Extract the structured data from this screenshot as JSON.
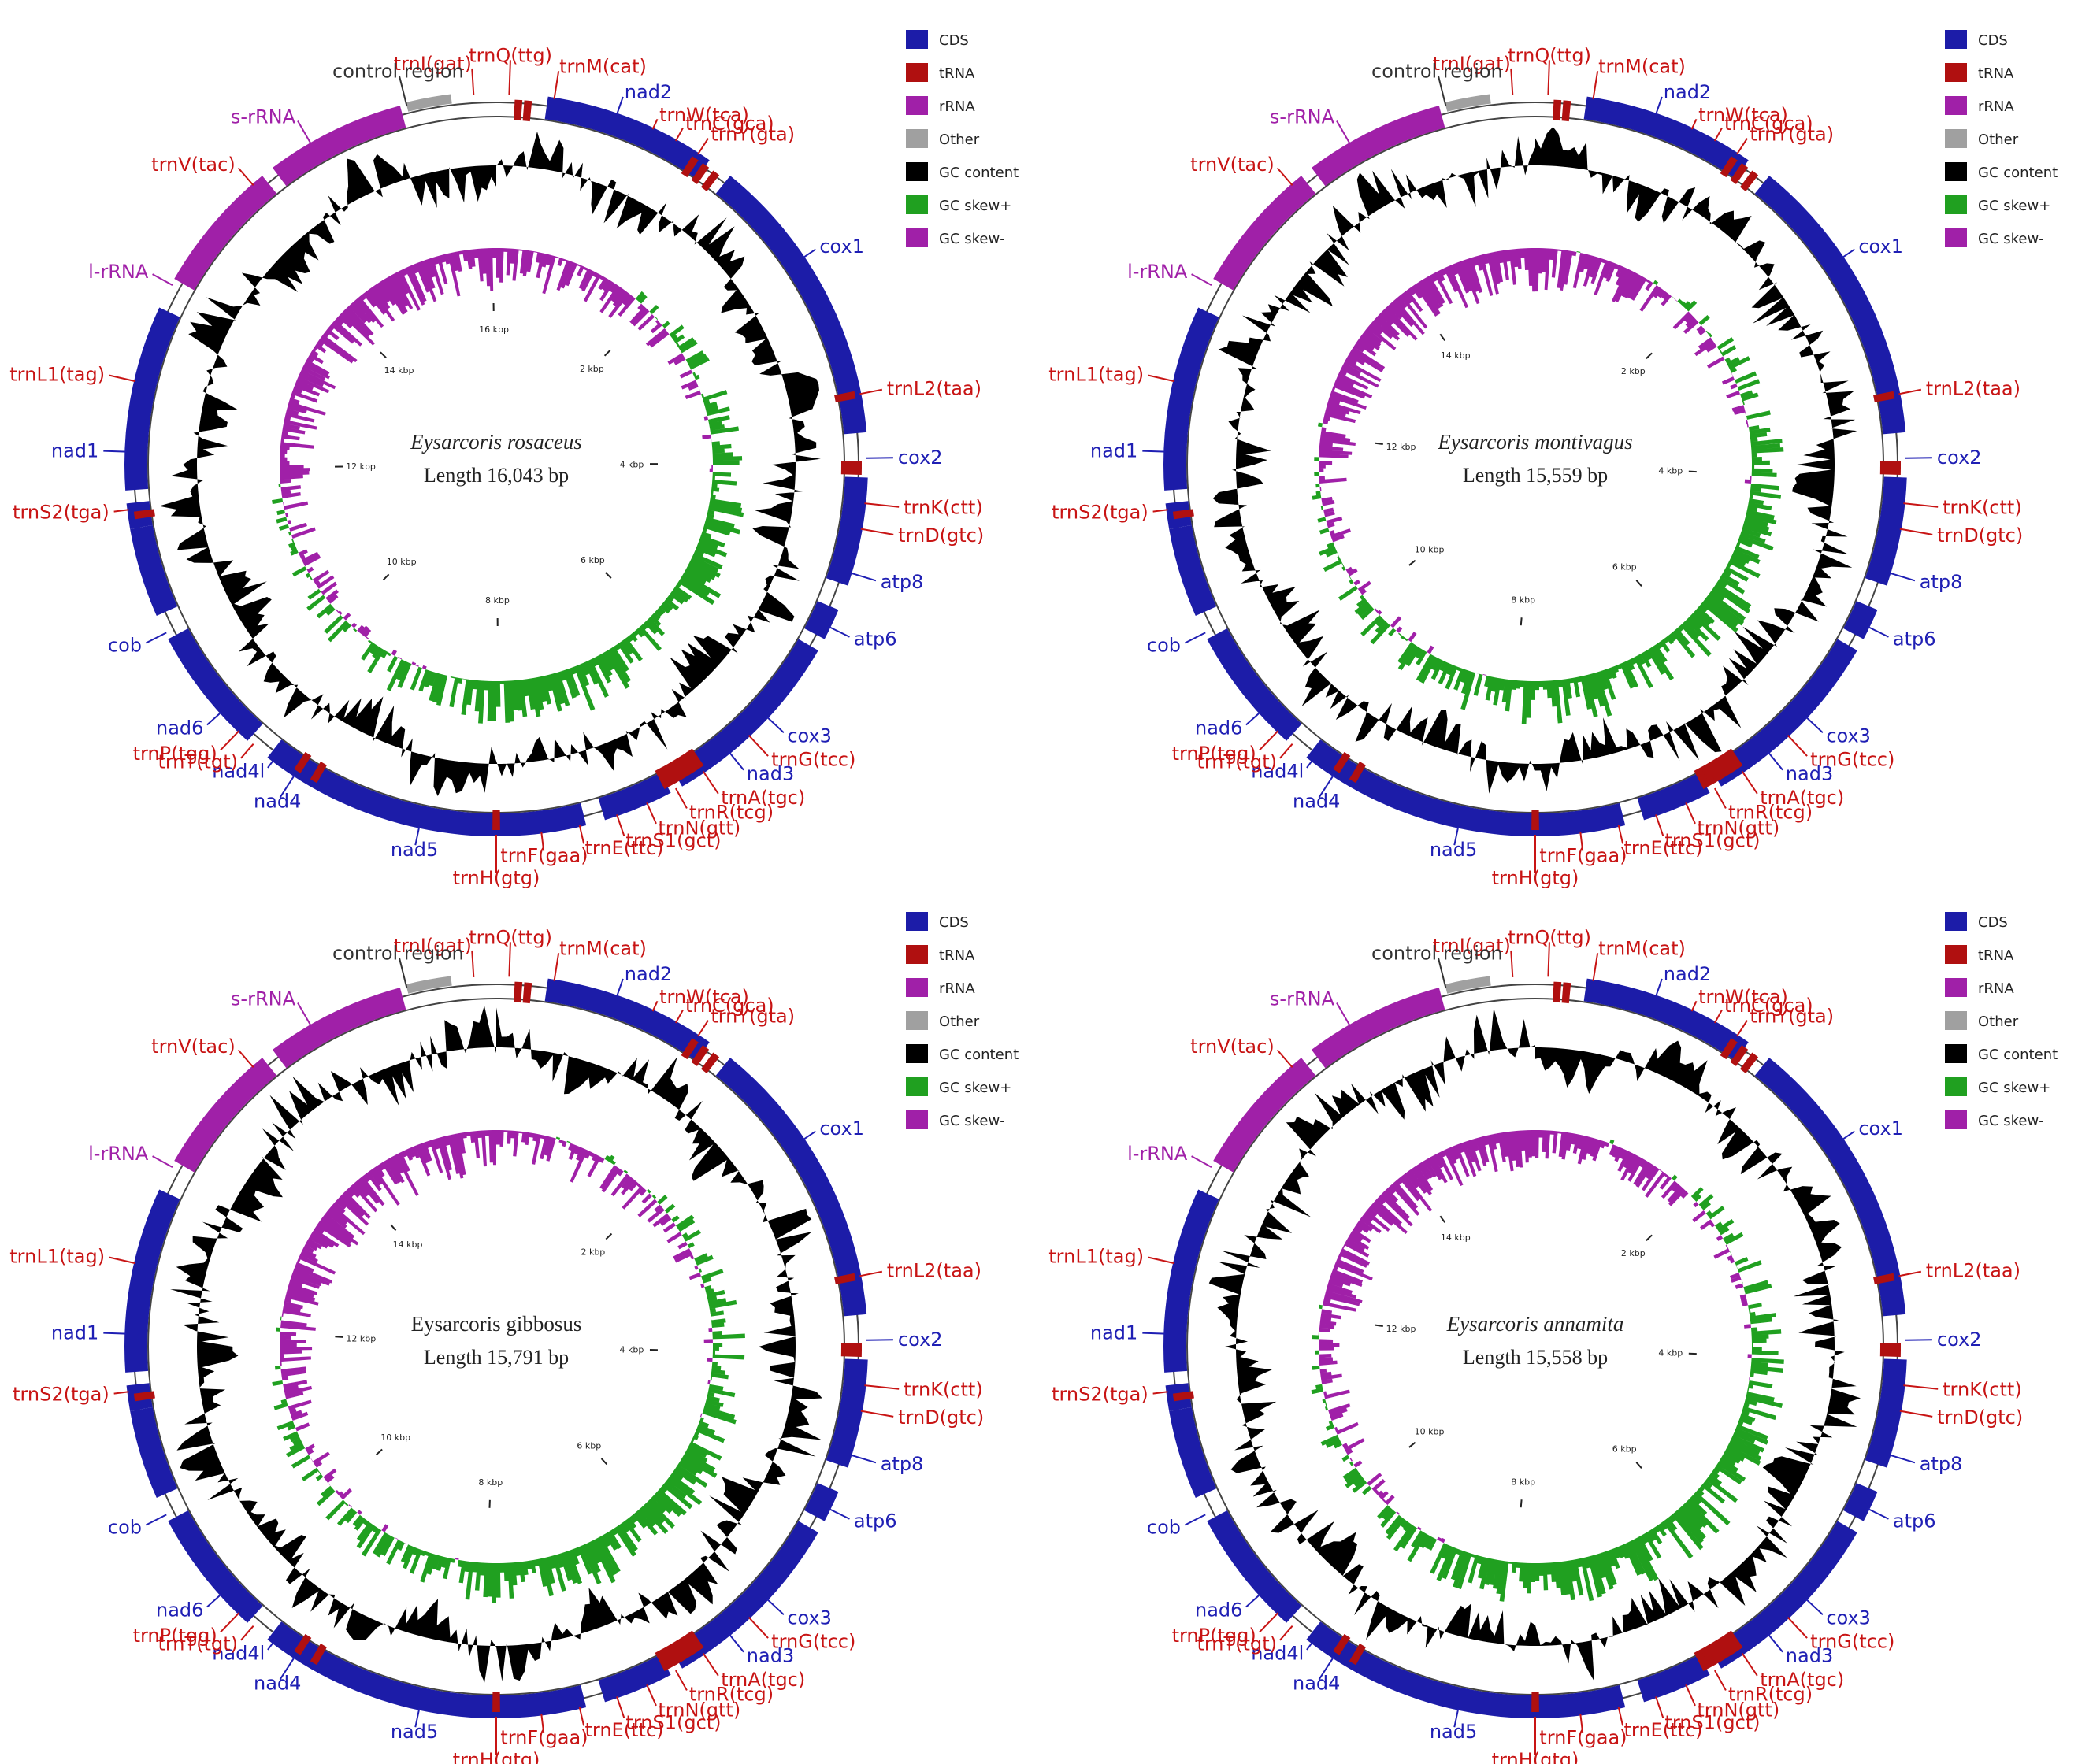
{
  "panels": [
    {
      "id": "rosaceus",
      "species": "Eysarcoris rosaceus",
      "italic": true,
      "length_label": "Length 16,043 bp",
      "length_bp": 16043,
      "kbp_ticks": [
        "2 kbp",
        "4 kbp",
        "6 kbp",
        "8 kbp",
        "10 kbp",
        "12 kbp",
        "14 kbp",
        "16 kbp"
      ],
      "labels": {
        "control": "control region",
        "trnI": "trnI(gat)",
        "trnQ": "trnQ(ttg)",
        "trnM": "trnM(cat)",
        "nad2": "nad2",
        "trnW": "trnW(tca)",
        "trnC": "trnC(gca)",
        "trnY": "trnY(gta)",
        "cox1": "cox1",
        "trnL2": "trnL2(taa)",
        "cox2": "cox2",
        "trnK": "trnK(ctt)",
        "trnD": "trnD(gtc)",
        "atp8": "atp8",
        "atp6": "atp6",
        "cox3": "cox3",
        "trnG": "trnG(tcc)",
        "nad3": "nad3",
        "trnA": "trnA(tgc)",
        "trnR": "trnR(tcg)",
        "trnN": "trnN(gtt)",
        "trnS1": "trnS1(gct)",
        "trnE": "trnE(ttc)",
        "trnF": "trnF(gaa)",
        "nad5": "nad5",
        "trnH": "trnH(gtg)",
        "nad4": "nad4",
        "nad4l": "nad4l",
        "trnT": "trnT(tgt)",
        "trnP": "trnP(tgg)",
        "nad6": "nad6",
        "cob": "cob",
        "trnS2": "trnS2(tga)",
        "nad1": "nad1",
        "trnL1": "trnL1(tag)",
        "lrRNA": "l-rRNA",
        "trnV": "trnV(tac)",
        "srRNA": "s-rRNA"
      }
    },
    {
      "id": "montivagus",
      "species": "Eysarcoris montivagus",
      "italic": true,
      "length_label": "Length 15,559 bp",
      "length_bp": 15559,
      "kbp_ticks": [
        "2 kbp",
        "4 kbp",
        "6 kbp",
        "8 kbp",
        "10 kbp",
        "12 kbp",
        "14 kbp"
      ],
      "labels": {
        "control": "control region",
        "trnI": "trnI(gat)",
        "trnQ": "trnQ(ttg)",
        "trnM": "trnM(cat)",
        "nad2": "nad2",
        "trnW": "trnW(tca)",
        "trnC": "trnC(gca)",
        "trnY": "trnY(gta)",
        "cox1": "cox1",
        "trnL2": "trnL2(taa)",
        "cox2": "cox2",
        "trnK": "trnK(ctt)",
        "trnD": "trnD(gtc)",
        "atp8": "atp8",
        "atp6": "atp6",
        "cox3": "cox3",
        "trnG": "trnG(tcc)",
        "nad3": "nad3",
        "trnA": "trnA(tgc)",
        "trnR": "trnR(tcg)",
        "trnN": "trnN(gtt)",
        "trnS1": "trnS1(gct)",
        "trnE": "trnE(ttc)",
        "trnF": "trnF(gaa)",
        "nad5": "nad5",
        "trnH": "trnH(gtg)",
        "nad4": "nad4",
        "nad4l": "nad4l",
        "trnT": "trnT(tgt)",
        "trnP": "trnP(tgg)",
        "nad6": "nad6",
        "cob": "cob",
        "trnS2": "trnS2(tga)",
        "nad1": "nad1",
        "trnL1": "trnL1(tag)",
        "lrRNA": "l-rRNA",
        "trnV": "trnV(tac)",
        "srRNA": "s-rRNA"
      }
    },
    {
      "id": "gibbosus",
      "species": "Eysarcoris gibbosus",
      "italic": false,
      "length_label": "Length 15,791 bp",
      "length_bp": 15791,
      "kbp_ticks": [
        "2 kbp",
        "4 kbp",
        "6 kbp",
        "8 kbp",
        "10 kbp",
        "12 kbp",
        "14 kbp"
      ],
      "labels": {
        "control": "control region",
        "trnI": "trnI(gat)",
        "trnQ": "trnQ(ttg)",
        "trnM": "trnM(cat)",
        "nad2": "nad2",
        "trnW": "trnW(tca)",
        "trnC": "trnC(gca)",
        "trnY": "trnY(gta)",
        "cox1": "cox1",
        "trnL2": "trnL2(taa)",
        "cox2": "cox2",
        "trnK": "trnK(ctt)",
        "trnD": "trnD(gtc)",
        "atp8": "atp8",
        "atp6": "atp6",
        "cox3": "cox3",
        "trnG": "trnG(tcc)",
        "nad3": "nad3",
        "trnA": "trnA(tgc)",
        "trnR": "trnR(tcg)",
        "trnN": "trnN(gtt)",
        "trnS1": "trnS1(gct)",
        "trnE": "trnE(ttc)",
        "trnF": "trnF(gaa)",
        "nad5": "nad5",
        "trnH": "trnH(gtg)",
        "nad4": "nad4",
        "nad4l": "nad4l",
        "trnT": "trnT(tgt)",
        "trnP": "trnP(tgg)",
        "nad6": "nad6",
        "cob": "cob",
        "trnS2": "trnS2(tga)",
        "nad1": "nad1",
        "trnL1": "trnL1(tag)",
        "lrRNA": "l-rRNA",
        "trnV": "trnV(tac)",
        "srRNA": "s-rRNA"
      }
    },
    {
      "id": "annamita",
      "species": "Eysarcoris annamita",
      "italic": true,
      "length_label": "Length 15,558 bp",
      "length_bp": 15558,
      "kbp_ticks": [
        "2 kbp",
        "4 kbp",
        "6 kbp",
        "8 kbp",
        "10 kbp",
        "12 kbp",
        "14 kbp"
      ],
      "labels": {
        "control": "control region",
        "trnI": "trnI(gat)",
        "trnQ": "trnQ(ttg)",
        "trnM": "trnM(cat)",
        "nad2": "nad2",
        "trnW": "trnW(tca)",
        "trnC": "trnC(gca)",
        "trnY": "trnY(gta)",
        "cox1": "cox1",
        "trnL2": "trnL2(taa)",
        "cox2": "cox2",
        "trnK": "trnK(ctt)",
        "trnD": "trnD(gtc)",
        "atp8": "atp8",
        "atp6": "atp6",
        "cox3": "cox3",
        "trnG": "trnG(tcc)",
        "nad3": "nad3",
        "trnA": "trnA(tgc)",
        "trnR": "trnR(tcg)",
        "trnN": "trnN(gtt)",
        "trnS1": "trnS1(gct)",
        "trnE": "trnE(ttc)",
        "trnF": "trnF(gaa)",
        "nad5": "nad5",
        "trnH": "trnH(gtg)",
        "nad4": "nad4",
        "nad4l": "nad4l",
        "trnT": "trnT(tgt)",
        "trnP": "trnP(tgg)",
        "nad6": "nad6",
        "cob": "cob",
        "trnS2": "trnS2(tga)",
        "nad1": "nad1",
        "trnL1": "trnL1(tag)",
        "lrRNA": "l-rRNA",
        "trnV": "trnV(tac)",
        "srRNA": "s-rRNA"
      }
    }
  ],
  "legend": [
    {
      "label": "CDS",
      "color": "#1c1ca8"
    },
    {
      "label": "tRNA",
      "color": "#b01010"
    },
    {
      "label": "rRNA",
      "color": "#a020a8"
    },
    {
      "label": "Other",
      "color": "#a0a0a0"
    },
    {
      "label": "GC content",
      "color": "#000000"
    },
    {
      "label": "GC skew+",
      "color": "#20a020"
    },
    {
      "label": "GC skew-",
      "color": "#a020a8"
    }
  ]
}
